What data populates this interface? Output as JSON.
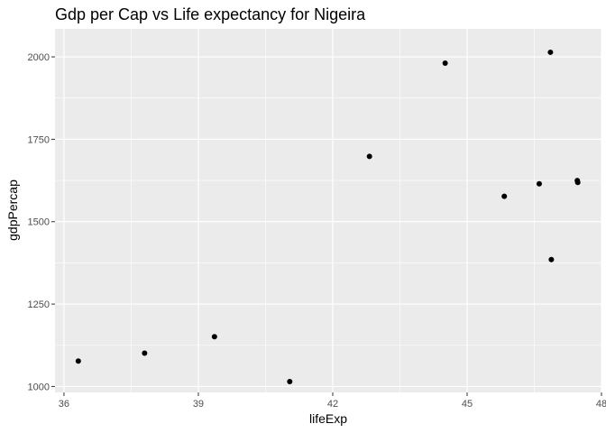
{
  "chart_data": {
    "type": "scatter",
    "title": "Gdp per Cap vs Life expectancy for Nigeira",
    "xlabel": "lifeExp",
    "ylabel": "gdpPercap",
    "xlim": [
      35.8,
      48.0
    ],
    "ylim": [
      982,
      2085
    ],
    "x_ticks": [
      36,
      39,
      42,
      45,
      48
    ],
    "y_ticks": [
      1000,
      1250,
      1500,
      1750,
      2000
    ],
    "x_minor": [
      37.5,
      40.5,
      43.5,
      46.5
    ],
    "y_minor": [
      1125,
      1375,
      1625,
      1875
    ],
    "grid": true,
    "panel_color": "#ebebeb",
    "gridline_color": "#ffffff",
    "point_color": "#000000",
    "points": [
      {
        "x": 36.32,
        "y": 1077
      },
      {
        "x": 37.8,
        "y": 1101
      },
      {
        "x": 39.36,
        "y": 1151
      },
      {
        "x": 41.04,
        "y": 1015
      },
      {
        "x": 42.82,
        "y": 1698
      },
      {
        "x": 44.51,
        "y": 1981
      },
      {
        "x": 45.83,
        "y": 1577
      },
      {
        "x": 46.61,
        "y": 1615
      },
      {
        "x": 46.86,
        "y": 2014
      },
      {
        "x": 46.88,
        "y": 1385
      },
      {
        "x": 47.46,
        "y": 1625
      },
      {
        "x": 47.47,
        "y": 1619
      }
    ]
  }
}
